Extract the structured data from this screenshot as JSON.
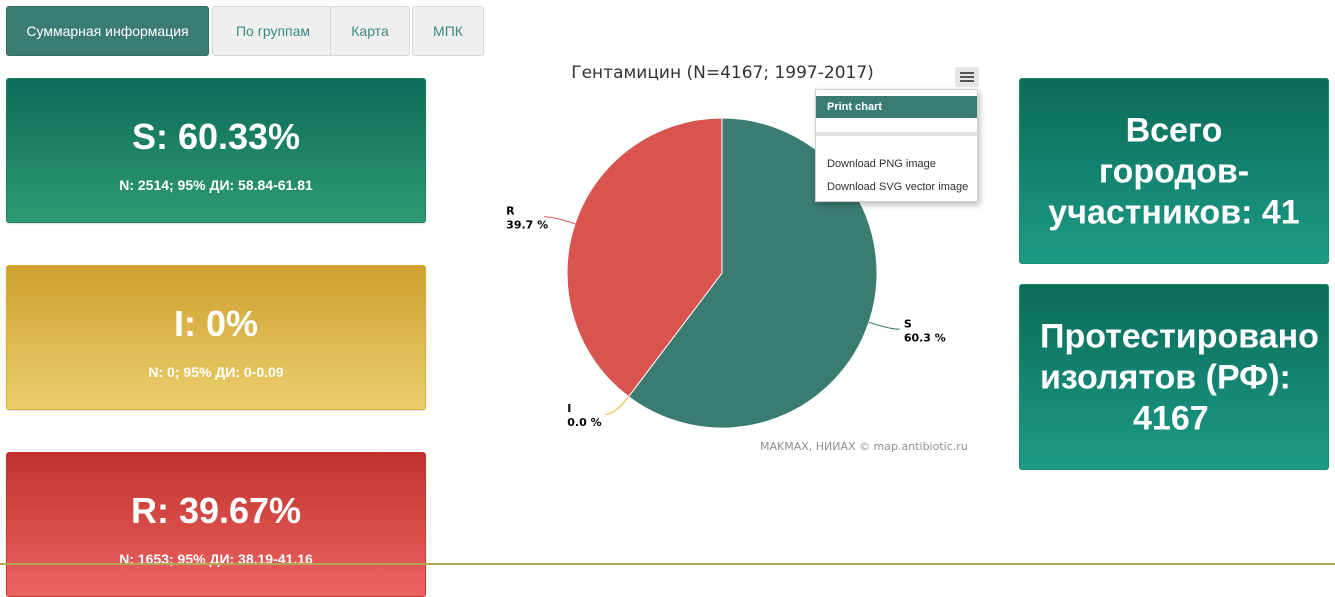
{
  "tabs": [
    {
      "label": "Суммарная информация",
      "active": true
    },
    {
      "label": "По группам",
      "active": false
    },
    {
      "label": "Карта",
      "active": false
    },
    {
      "label": "МПК",
      "active": false
    }
  ],
  "cards": {
    "s": {
      "main": "S: 60.33%",
      "detail": "N: 2514; 95% ДИ: 58.84-61.81"
    },
    "i": {
      "main": "I: 0%",
      "detail": "N: 0; 95% ДИ: 0-0.09"
    },
    "r": {
      "main": "R: 39.67%",
      "detail": "N: 1653; 95% ДИ: 38.19-41.16"
    }
  },
  "right": {
    "cities": "Всего\nгородов-\nучастников: 41",
    "isolates_l1": "Протестировано",
    "isolates_l2": "изолятов (РФ):",
    "isolates_l3": "4167"
  },
  "chart_data": {
    "type": "pie",
    "title": "Гентамицин (N=4167; 1997-2017)",
    "slices": [
      {
        "name": "S",
        "value": 60.3,
        "label": "60.3 %",
        "color": "#3a7c72"
      },
      {
        "name": "I",
        "value": 0.0,
        "label": "0.0 %",
        "color": "#e8b631"
      },
      {
        "name": "R",
        "value": 39.7,
        "label": "39.7 %",
        "color": "#d9534f"
      }
    ]
  },
  "credit": "MAKMAX, НИИАХ © map.antibiotic.ru",
  "menu": {
    "items": [
      "Print chart",
      "Download PNG image",
      "Download SVG vector image"
    ]
  }
}
